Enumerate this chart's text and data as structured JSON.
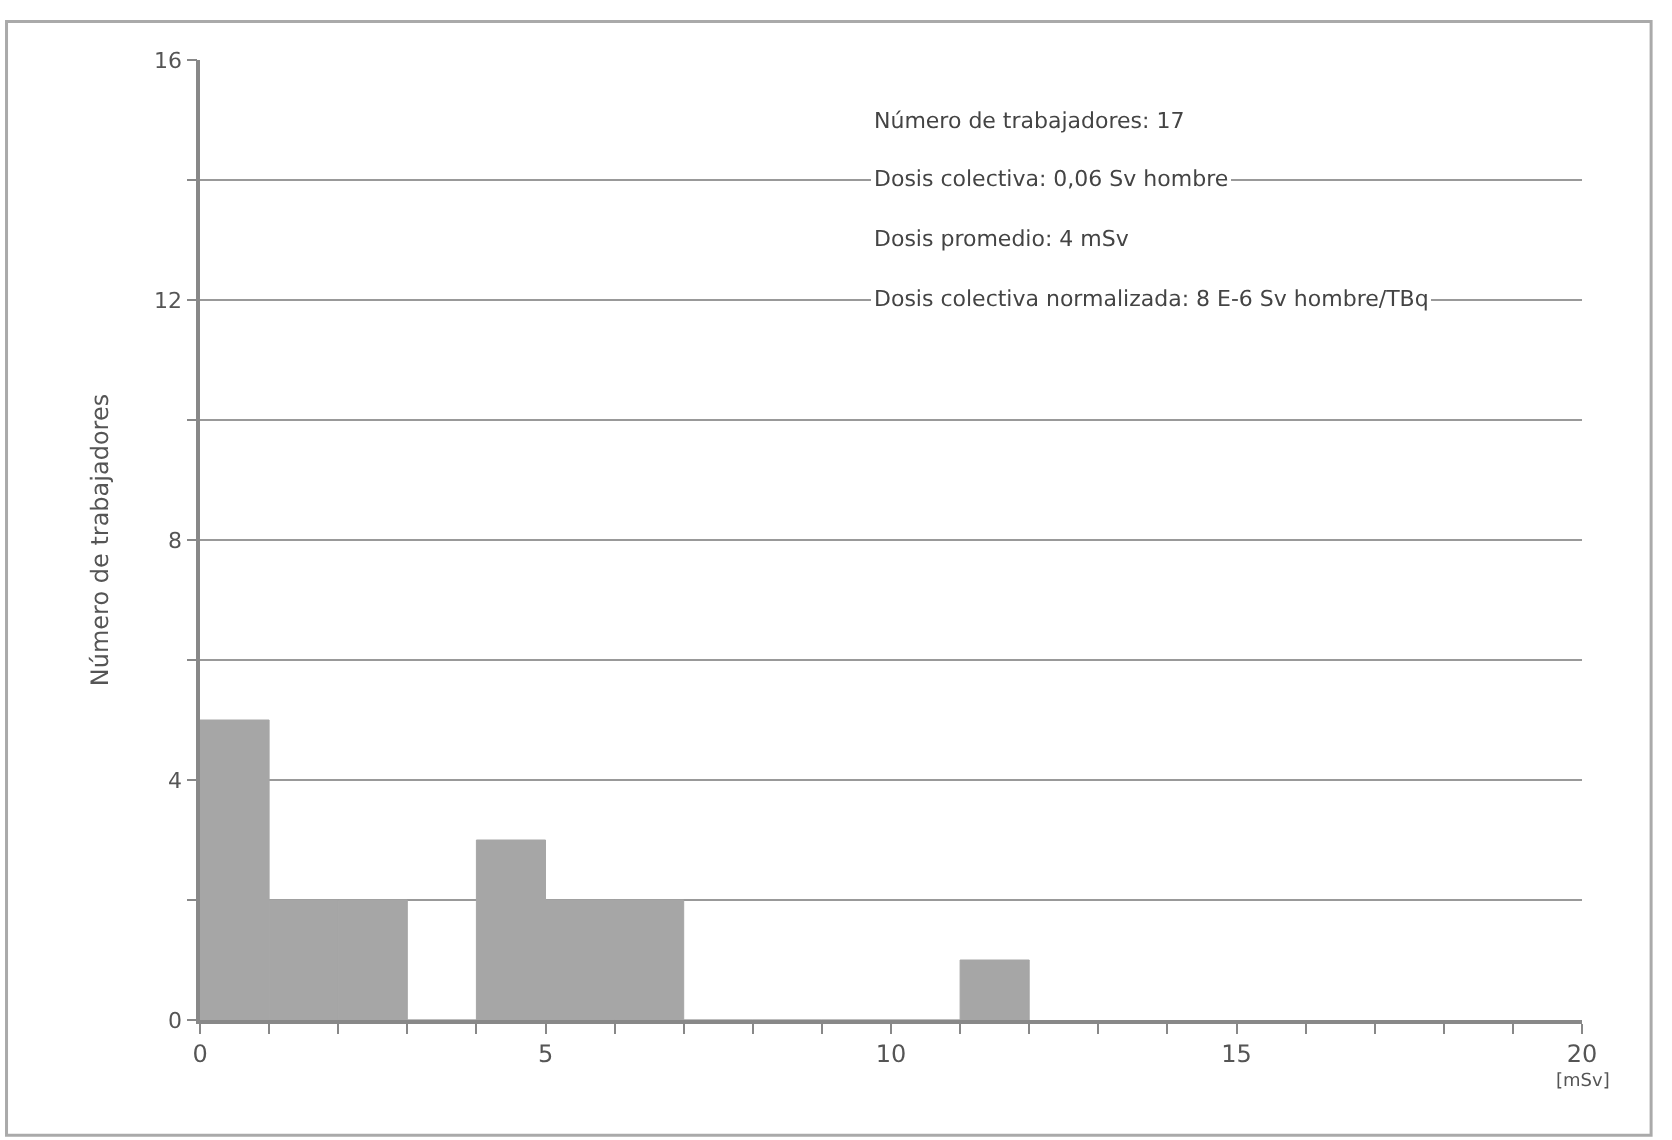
{
  "chart_data": {
    "type": "histogram",
    "xlabel": "[mSv]",
    "ylabel": "Número de trabajadores",
    "bins": [
      0,
      1,
      2,
      3,
      4,
      5,
      6,
      7,
      8,
      9,
      10,
      11,
      12
    ],
    "values": [
      5,
      2,
      2,
      0,
      3,
      2,
      2,
      0,
      0,
      0,
      0,
      1
    ],
    "color": "#a6a6a6",
    "xlim": [
      0,
      20
    ],
    "xticks": [
      0,
      {
        "value": 1,
        "label": null
      },
      {
        "value": 2,
        "label": null
      },
      {
        "value": 3,
        "label": null
      },
      {
        "value": 4,
        "label": null
      },
      5,
      {
        "value": 6,
        "label": null
      },
      {
        "value": 7,
        "label": null
      },
      {
        "value": 8,
        "label": null
      },
      {
        "value": 9,
        "label": null
      },
      10,
      {
        "value": 11,
        "label": null
      },
      {
        "value": 12,
        "label": null
      },
      {
        "value": 13,
        "label": null
      },
      {
        "value": 14,
        "label": null
      },
      15,
      {
        "value": 16,
        "label": null
      },
      {
        "value": 17,
        "label": null
      },
      {
        "value": 18,
        "label": null
      },
      {
        "value": 19,
        "label": null
      },
      20
    ],
    "ylim": [
      0,
      16
    ],
    "yticks": [
      0,
      {
        "value": 2,
        "label": null
      },
      4,
      {
        "value": 6,
        "label": null
      },
      8,
      {
        "value": 10,
        "label": null
      },
      12,
      {
        "value": 14,
        "label": null
      },
      16
    ],
    "grid": "y",
    "annotations": [
      "Número de trabajadores: 17",
      "Dosis colectiva: 0,06 Sv hombre",
      "Dosis promedio: 4 mSv",
      "Dosis colectiva normalizada: 8 E-6 Sv hombre/TBq"
    ]
  }
}
